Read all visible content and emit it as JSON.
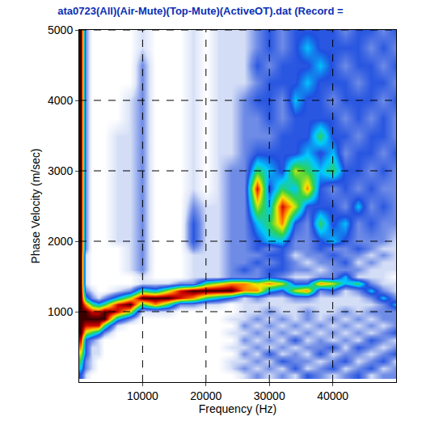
{
  "chart_data": {
    "type": "heatmap",
    "title": "ata0723(All)(Air-Mute)(Top-Mute)(ActiveOT).dat (Record =",
    "x_label": "Frequency (Hz)",
    "y_label": "Phase Velocity (m/sec)",
    "xlim": [
      0,
      50000
    ],
    "ylim": [
      0,
      5000
    ],
    "xticks": [
      10000,
      20000,
      30000,
      40000
    ],
    "yticks": [
      1000,
      2000,
      3000,
      4000,
      5000
    ],
    "grid": true,
    "z_range": [
      0,
      9
    ],
    "x": [
      250,
      1000,
      2000,
      3000,
      4000,
      6000,
      8000,
      10000,
      12000,
      14000,
      16000,
      18000,
      20000,
      22000,
      24000,
      26000,
      28000,
      30000,
      32000,
      34000,
      36000,
      38000,
      40000,
      42000,
      44000,
      46000,
      48000,
      50000
    ],
    "y": [
      100,
      200,
      300,
      400,
      500,
      600,
      700,
      800,
      900,
      1000,
      1100,
      1200,
      1300,
      1400,
      1500,
      1600,
      1700,
      1800,
      1900,
      2000,
      2250,
      2500,
      2750,
      3000,
      3250,
      3500,
      3750,
      4000,
      4250,
      4500,
      4750,
      5000
    ],
    "z": [
      [
        3,
        1,
        0,
        0,
        0,
        0,
        0,
        0,
        0,
        0,
        0,
        0,
        0,
        0,
        0,
        1,
        2,
        1,
        2,
        1,
        3,
        2,
        1,
        2,
        3,
        1,
        2,
        2
      ],
      [
        4,
        2,
        1,
        0,
        0,
        0,
        0,
        0,
        0,
        0,
        0,
        0,
        0,
        0,
        1,
        2,
        1,
        2,
        1,
        3,
        1,
        2,
        3,
        1,
        2,
        3,
        1,
        2
      ],
      [
        5,
        2,
        1,
        0,
        0,
        0,
        0,
        0,
        0,
        0,
        0,
        0,
        0,
        0,
        1,
        1,
        2,
        1,
        3,
        2,
        2,
        1,
        2,
        3,
        1,
        2,
        3,
        1
      ],
      [
        6,
        3,
        1,
        1,
        0,
        0,
        0,
        0,
        0,
        0,
        0,
        0,
        0,
        0,
        0,
        2,
        1,
        3,
        1,
        2,
        1,
        3,
        1,
        2,
        2,
        1,
        2,
        3
      ],
      [
        7,
        3,
        1,
        1,
        0,
        0,
        0,
        0,
        0,
        0,
        0,
        0,
        0,
        0,
        1,
        1,
        2,
        1,
        2,
        1,
        2,
        2,
        3,
        1,
        3,
        2,
        1,
        2
      ],
      [
        8,
        3,
        2,
        1,
        0,
        0,
        0,
        0,
        0,
        0,
        0,
        0,
        0,
        0,
        0,
        2,
        1,
        2,
        1,
        3,
        1,
        2,
        1,
        2,
        1,
        3,
        2,
        1
      ],
      [
        9,
        6,
        5,
        4,
        2,
        0,
        0,
        0,
        0,
        0,
        0,
        0,
        0,
        0,
        1,
        1,
        2,
        1,
        2,
        1,
        2,
        1,
        2,
        1,
        2,
        1,
        2,
        3
      ],
      [
        9,
        8,
        8,
        8,
        5,
        1,
        0,
        0,
        0,
        0,
        0,
        0,
        0,
        0,
        0,
        2,
        1,
        2,
        1,
        2,
        1,
        2,
        1,
        2,
        1,
        2,
        1,
        2
      ],
      [
        9,
        9,
        9,
        9,
        9,
        4,
        2,
        0,
        0,
        0,
        0,
        0,
        0,
        0,
        1,
        1,
        2,
        1,
        2,
        1,
        2,
        1,
        2,
        1,
        2,
        1,
        2,
        2
      ],
      [
        9,
        9,
        8,
        8,
        9,
        8,
        6,
        1,
        1,
        1,
        0,
        0,
        0,
        0,
        0,
        1,
        1,
        2,
        1,
        1,
        2,
        1,
        1,
        2,
        1,
        2,
        2,
        2
      ],
      [
        9,
        7,
        5,
        4,
        5,
        8,
        9,
        5,
        7,
        5,
        2,
        2,
        1,
        1,
        0,
        1,
        1,
        1,
        1,
        1,
        1,
        1,
        1,
        1,
        1,
        1,
        2,
        4
      ],
      [
        9,
        4,
        2,
        1,
        2,
        4,
        6,
        9,
        9,
        9,
        8,
        7,
        5,
        4,
        3,
        1,
        2,
        1,
        1,
        2,
        2,
        1,
        1,
        1,
        1,
        2,
        4,
        2
      ],
      [
        9,
        2,
        1,
        0,
        0,
        1,
        2,
        5,
        4,
        6,
        8,
        9,
        9,
        9,
        9,
        7,
        7,
        4,
        3,
        6,
        7,
        2,
        3,
        1,
        2,
        4,
        2,
        1
      ],
      [
        9,
        1,
        0,
        0,
        0,
        0,
        0,
        1,
        1,
        1,
        2,
        2,
        5,
        6,
        7,
        7,
        6,
        7,
        6,
        3,
        3,
        7,
        6,
        4,
        5,
        2,
        1,
        1
      ],
      [
        9,
        1,
        0,
        0,
        0,
        0,
        0,
        1,
        0,
        0,
        0,
        1,
        1,
        1,
        2,
        2,
        2,
        3,
        2,
        1,
        1,
        2,
        2,
        4,
        1,
        1,
        1,
        0
      ],
      [
        9,
        1,
        0,
        0,
        0,
        0,
        1,
        2,
        0,
        0,
        0,
        1,
        1,
        1,
        2,
        3,
        2,
        3,
        3,
        2,
        2,
        1,
        2,
        2,
        2,
        1,
        1,
        1
      ],
      [
        9,
        1,
        0,
        0,
        0,
        0,
        1,
        2,
        0,
        0,
        0,
        1,
        1,
        1,
        2,
        2,
        3,
        2,
        3,
        2,
        1,
        2,
        2,
        3,
        1,
        2,
        1,
        1
      ],
      [
        9,
        1,
        0,
        0,
        0,
        0,
        1,
        2,
        0,
        0,
        0,
        1,
        1,
        1,
        2,
        2,
        2,
        3,
        3,
        1,
        2,
        2,
        3,
        2,
        2,
        1,
        2,
        1
      ],
      [
        9,
        2,
        0,
        0,
        0,
        0,
        1,
        2,
        0,
        0,
        0,
        2,
        1,
        1,
        2,
        2,
        3,
        2,
        3,
        2,
        2,
        3,
        2,
        2,
        3,
        2,
        1,
        1
      ],
      [
        9,
        2,
        0,
        0,
        0,
        1,
        1,
        2,
        0,
        0,
        0,
        3,
        1,
        1,
        2,
        2,
        3,
        4,
        4,
        2,
        2,
        3,
        4,
        3,
        2,
        2,
        2,
        1
      ],
      [
        9,
        2,
        0,
        0,
        0,
        1,
        1,
        2,
        0,
        0,
        0,
        3,
        1,
        1,
        2,
        2,
        4,
        5,
        7,
        3,
        2,
        5,
        3,
        4,
        2,
        3,
        2,
        2
      ],
      [
        9,
        2,
        0,
        0,
        0,
        1,
        1,
        2,
        0,
        0,
        0,
        2,
        1,
        1,
        2,
        2,
        6,
        4,
        8,
        6,
        3,
        3,
        3,
        2,
        4,
        2,
        3,
        2
      ],
      [
        9,
        2,
        0,
        0,
        0,
        1,
        1,
        2,
        0,
        0,
        0,
        1,
        0,
        1,
        2,
        2,
        8,
        3,
        5,
        4,
        7,
        3,
        2,
        3,
        2,
        3,
        2,
        2
      ],
      [
        9,
        2,
        0,
        0,
        0,
        1,
        1,
        2,
        0,
        0,
        0,
        1,
        0,
        1,
        2,
        2,
        5,
        4,
        3,
        6,
        5,
        4,
        5,
        3,
        3,
        2,
        3,
        2
      ],
      [
        9,
        2,
        0,
        0,
        0,
        1,
        1,
        2,
        0,
        0,
        0,
        1,
        0,
        1,
        1,
        2,
        3,
        3,
        3,
        3,
        4,
        3,
        4,
        2,
        3,
        3,
        2,
        3
      ],
      [
        9,
        2,
        0,
        0,
        0,
        1,
        1,
        2,
        0,
        0,
        0,
        1,
        0,
        1,
        1,
        2,
        2,
        2,
        3,
        3,
        3,
        5,
        3,
        3,
        2,
        3,
        3,
        2
      ],
      [
        9,
        2,
        0,
        0,
        0,
        0,
        1,
        2,
        0,
        0,
        0,
        1,
        0,
        1,
        1,
        2,
        2,
        3,
        2,
        3,
        3,
        3,
        3,
        2,
        3,
        2,
        3,
        2
      ],
      [
        9,
        2,
        0,
        0,
        0,
        0,
        1,
        2,
        0,
        0,
        0,
        1,
        0,
        1,
        1,
        2,
        3,
        3,
        2,
        4,
        3,
        3,
        2,
        3,
        3,
        3,
        2,
        3
      ],
      [
        9,
        2,
        0,
        0,
        0,
        0,
        0,
        2,
        0,
        0,
        0,
        1,
        0,
        1,
        1,
        1,
        2,
        3,
        3,
        3,
        4,
        3,
        3,
        3,
        2,
        3,
        3,
        2
      ],
      [
        9,
        2,
        0,
        0,
        0,
        0,
        0,
        2,
        0,
        0,
        0,
        1,
        0,
        1,
        1,
        1,
        3,
        2,
        3,
        3,
        3,
        4,
        3,
        2,
        3,
        3,
        2,
        3
      ],
      [
        9,
        2,
        0,
        0,
        0,
        0,
        0,
        1,
        0,
        0,
        0,
        1,
        0,
        1,
        1,
        1,
        2,
        3,
        2,
        3,
        4,
        3,
        3,
        3,
        3,
        2,
        3,
        2
      ],
      [
        9,
        2,
        0,
        0,
        0,
        0,
        0,
        1,
        0,
        0,
        0,
        1,
        0,
        1,
        1,
        1,
        2,
        3,
        2,
        3,
        3,
        3,
        3,
        2,
        3,
        3,
        2,
        3
      ]
    ]
  }
}
